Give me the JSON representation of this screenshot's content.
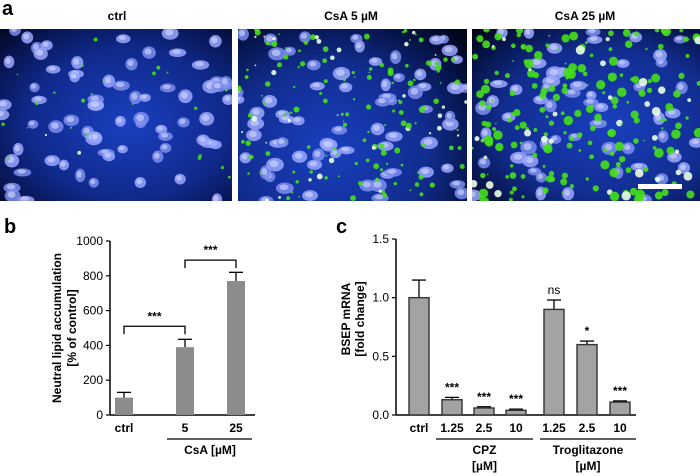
{
  "figure": {
    "panel_a_letter": "a",
    "panel_b_letter": "b",
    "panel_c_letter": "c",
    "image_titles": [
      "ctrl",
      "CsA 5 µM",
      "CsA 25 µM"
    ]
  },
  "chart_data": [
    {
      "type": "bar",
      "panel": "b",
      "categories": [
        "ctrl",
        "5",
        "25"
      ],
      "values": [
        100,
        390,
        770
      ],
      "errors": [
        30,
        45,
        50
      ],
      "ylim": [
        0,
        1000
      ],
      "yticks": [
        "0",
        "200",
        "400",
        "600",
        "800",
        "1000"
      ],
      "ylabel_line1": "Neutral lipid accumulation",
      "ylabel_line2": "[% of control]",
      "group_label": "CsA [µM]",
      "significance": [
        {
          "between": [
            "ctrl",
            "5"
          ],
          "label": "***"
        },
        {
          "between": [
            "5",
            "25"
          ],
          "label": "***"
        }
      ],
      "bar_color": "#8c8c8c"
    },
    {
      "type": "bar",
      "panel": "c",
      "categories": [
        "ctrl",
        "1.25",
        "2.5",
        "10",
        "1.25",
        "2.5",
        "10"
      ],
      "values": [
        1.0,
        0.13,
        0.06,
        0.04,
        0.9,
        0.6,
        0.11
      ],
      "errors": [
        0.15,
        0.02,
        0.01,
        0.01,
        0.08,
        0.03,
        0.01
      ],
      "labels": [
        "",
        "***",
        "***",
        "***",
        "ns",
        "*",
        "***"
      ],
      "ylim": [
        0,
        1.5
      ],
      "yticks": [
        "0.0",
        "0.5",
        "1.0",
        "1.5"
      ],
      "ylabel_line1": "BSEP mRNA",
      "ylabel_line2": "[fold change]",
      "groups": [
        {
          "line1": "CPZ",
          "line2": "[µM]"
        },
        {
          "line1": "Troglitazone",
          "line2": "[µM]"
        }
      ],
      "bar_color": "#a3a3a3"
    }
  ]
}
